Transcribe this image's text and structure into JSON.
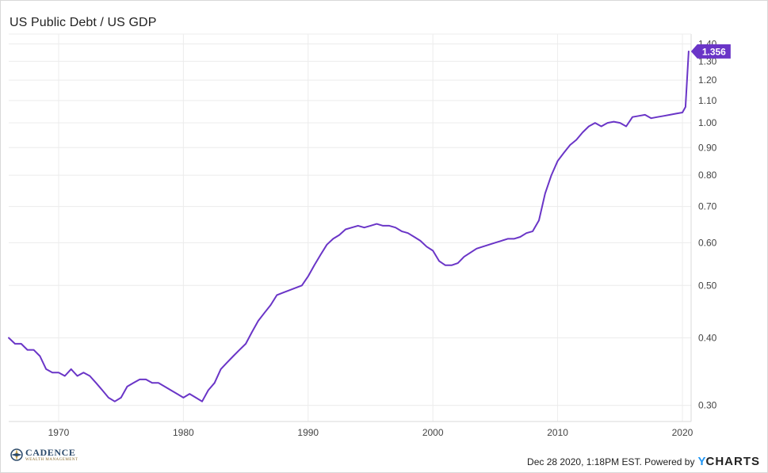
{
  "chart_data": {
    "type": "line",
    "title": "US Public Debt / US GDP",
    "xlabel": "",
    "ylabel": "",
    "y_scale": "log",
    "ylim": [
      0.28,
      1.46
    ],
    "xlim": [
      1966.0,
      2020.7
    ],
    "x_ticks": [
      1970,
      1980,
      1990,
      2000,
      2010,
      2020
    ],
    "x_tick_labels": [
      "1970",
      "1980",
      "1990",
      "2000",
      "2010",
      "2020"
    ],
    "y_ticks": [
      0.3,
      0.4,
      0.5,
      0.6,
      0.7,
      0.8,
      0.9,
      1.0,
      1.1,
      1.2,
      1.3,
      1.4
    ],
    "y_tick_labels": [
      "0.30",
      "0.40",
      "0.50",
      "0.60",
      "0.70",
      "0.80",
      "0.90",
      "1.00",
      "1.10",
      "1.20",
      "1.30",
      "1.40"
    ],
    "grid": true,
    "series": [
      {
        "color": "#6a35c7",
        "last_value_label": "1.356",
        "x": [
          1966.0,
          1966.5,
          1967.0,
          1967.5,
          1968.0,
          1968.5,
          1969.0,
          1969.5,
          1970.0,
          1970.5,
          1971.0,
          1971.5,
          1972.0,
          1972.5,
          1973.0,
          1973.5,
          1974.0,
          1974.5,
          1975.0,
          1975.5,
          1976.0,
          1976.5,
          1977.0,
          1977.5,
          1978.0,
          1978.5,
          1979.0,
          1979.5,
          1980.0,
          1980.5,
          1981.0,
          1981.5,
          1982.0,
          1982.5,
          1983.0,
          1983.5,
          1984.0,
          1984.5,
          1985.0,
          1985.5,
          1986.0,
          1986.5,
          1987.0,
          1987.5,
          1988.0,
          1988.5,
          1989.0,
          1989.5,
          1990.0,
          1990.5,
          1991.0,
          1991.5,
          1992.0,
          1992.5,
          1993.0,
          1993.5,
          1994.0,
          1994.5,
          1995.0,
          1995.5,
          1996.0,
          1996.5,
          1997.0,
          1997.5,
          1998.0,
          1998.5,
          1999.0,
          1999.5,
          2000.0,
          2000.5,
          2001.0,
          2001.5,
          2002.0,
          2002.5,
          2003.0,
          2003.5,
          2004.0,
          2004.5,
          2005.0,
          2005.5,
          2006.0,
          2006.5,
          2007.0,
          2007.5,
          2008.0,
          2008.5,
          2009.0,
          2009.5,
          2010.0,
          2010.5,
          2011.0,
          2011.5,
          2012.0,
          2012.5,
          2013.0,
          2013.5,
          2014.0,
          2014.5,
          2015.0,
          2015.5,
          2016.0,
          2016.5,
          2017.0,
          2017.5,
          2018.0,
          2018.5,
          2019.0,
          2019.5,
          2020.0,
          2020.25,
          2020.5
        ],
        "values": [
          0.4,
          0.39,
          0.39,
          0.38,
          0.38,
          0.37,
          0.35,
          0.345,
          0.345,
          0.34,
          0.35,
          0.34,
          0.345,
          0.34,
          0.33,
          0.32,
          0.31,
          0.305,
          0.31,
          0.325,
          0.33,
          0.335,
          0.335,
          0.33,
          0.33,
          0.325,
          0.32,
          0.315,
          0.31,
          0.315,
          0.31,
          0.305,
          0.32,
          0.33,
          0.35,
          0.36,
          0.37,
          0.38,
          0.39,
          0.41,
          0.43,
          0.445,
          0.46,
          0.48,
          0.485,
          0.49,
          0.495,
          0.5,
          0.52,
          0.545,
          0.57,
          0.595,
          0.61,
          0.62,
          0.635,
          0.64,
          0.645,
          0.64,
          0.645,
          0.65,
          0.645,
          0.645,
          0.64,
          0.63,
          0.625,
          0.615,
          0.605,
          0.59,
          0.58,
          0.555,
          0.545,
          0.545,
          0.55,
          0.565,
          0.575,
          0.585,
          0.59,
          0.595,
          0.6,
          0.605,
          0.61,
          0.61,
          0.615,
          0.625,
          0.63,
          0.66,
          0.74,
          0.8,
          0.85,
          0.88,
          0.91,
          0.93,
          0.96,
          0.985,
          1.0,
          0.985,
          1.0,
          1.005,
          1.0,
          0.985,
          1.025,
          1.03,
          1.035,
          1.02,
          1.025,
          1.03,
          1.035,
          1.04,
          1.045,
          1.07,
          1.356
        ]
      }
    ]
  },
  "footer": {
    "logo_name": "CADENCE",
    "logo_sub": "WEALTH MANAGEMENT",
    "timestamp": "Dec 28 2020, 1:18PM EST. Powered by",
    "brand_y": "Y",
    "brand_rest": "CHARTS"
  }
}
